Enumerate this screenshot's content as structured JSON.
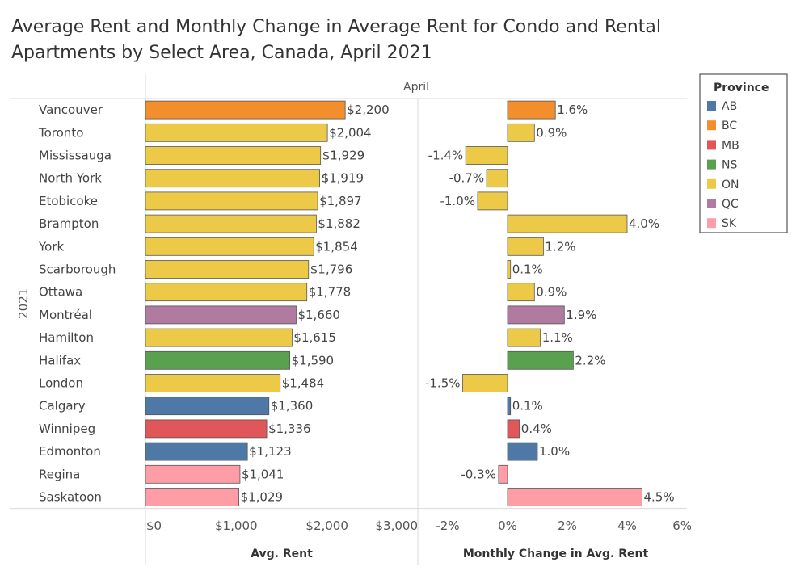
{
  "title_line1": "Average Rent and Monthly Change in Average Rent for Condo and Rental",
  "title_line2": "Apartments by Select Area, Canada, April 2021",
  "chart_data": [
    {
      "type": "bar",
      "orientation": "horizontal",
      "header": "April",
      "row_group_label": "2021",
      "xlabel": "Avg. Rent",
      "xlim": [
        0,
        3000
      ],
      "xticks": [
        "$0",
        "$1,000",
        "$2,000",
        "$3,000"
      ],
      "xtick_values": [
        0,
        1000,
        2000,
        3000
      ],
      "categories": [
        "Vancouver",
        "Toronto",
        "Mississauga",
        "North York",
        "Etobicoke",
        "Brampton",
        "York",
        "Scarborough",
        "Ottawa",
        "Montréal",
        "Hamilton",
        "Halifax",
        "London",
        "Calgary",
        "Winnipeg",
        "Edmonton",
        "Regina",
        "Saskatoon"
      ],
      "provinces": [
        "BC",
        "ON",
        "ON",
        "ON",
        "ON",
        "ON",
        "ON",
        "ON",
        "ON",
        "QC",
        "ON",
        "NS",
        "ON",
        "AB",
        "MB",
        "AB",
        "SK",
        "SK"
      ],
      "values": [
        2200,
        2004,
        1929,
        1919,
        1897,
        1882,
        1854,
        1796,
        1778,
        1660,
        1615,
        1590,
        1484,
        1360,
        1336,
        1123,
        1041,
        1029
      ],
      "labels": [
        "$2,200",
        "$2,004",
        "$1,929",
        "$1,919",
        "$1,897",
        "$1,882",
        "$1,854",
        "$1,796",
        "$1,778",
        "$1,660",
        "$1,615",
        "$1,590",
        "$1,484",
        "$1,360",
        "$1,336",
        "$1,123",
        "$1,041",
        "$1,029"
      ]
    },
    {
      "type": "bar",
      "orientation": "horizontal",
      "xlabel": "Monthly Change in Avg. Rent",
      "xlim": [
        -3,
        6
      ],
      "xticks": [
        "-2%",
        "0%",
        "2%",
        "4%",
        "6%"
      ],
      "xtick_values": [
        -2,
        0,
        2,
        4,
        6
      ],
      "values": [
        1.6,
        0.9,
        -1.4,
        -0.7,
        -1.0,
        4.0,
        1.2,
        0.1,
        0.9,
        1.9,
        1.1,
        2.2,
        -1.5,
        0.1,
        0.4,
        1.0,
        -0.3,
        4.5
      ],
      "labels": [
        "1.6%",
        "0.9%",
        "-1.4%",
        "-0.7%",
        "-1.0%",
        "4.0%",
        "1.2%",
        "0.1%",
        "0.9%",
        "1.9%",
        "1.1%",
        "2.2%",
        "-1.5%",
        "0.1%",
        "0.4%",
        "1.0%",
        "-0.3%",
        "4.5%"
      ]
    }
  ],
  "legend": {
    "title": "Province",
    "position": "top-right",
    "items": [
      {
        "name": "AB",
        "color": "#4e79a7"
      },
      {
        "name": "BC",
        "color": "#f28e2b"
      },
      {
        "name": "MB",
        "color": "#e15759"
      },
      {
        "name": "NS",
        "color": "#59a14f"
      },
      {
        "name": "ON",
        "color": "#edc948"
      },
      {
        "name": "QC",
        "color": "#b07aa1"
      },
      {
        "name": "SK",
        "color": "#ff9da7"
      }
    ]
  }
}
